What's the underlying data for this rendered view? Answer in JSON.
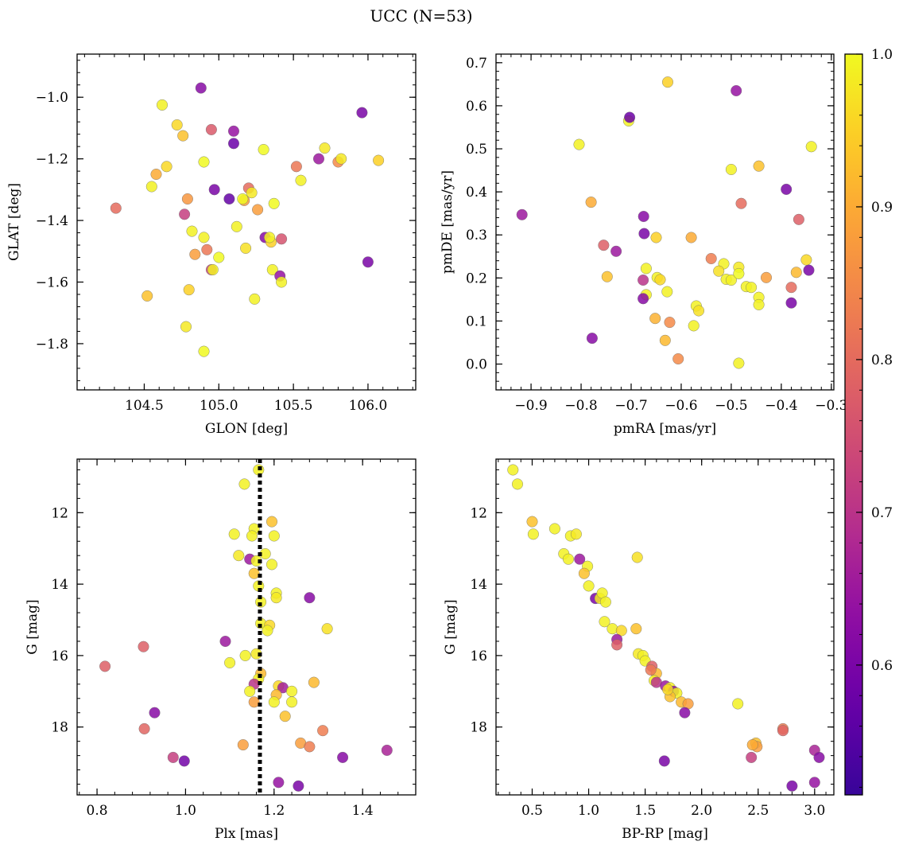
{
  "figure": {
    "title": "UCC (N=53)"
  },
  "colorbar": {
    "colormap": "plasma",
    "vmin": 0.515,
    "vmax": 1.0,
    "ticks": [
      0.6,
      0.7,
      0.8,
      0.9,
      1.0
    ],
    "tick_labels": [
      "0.6",
      "0.7",
      "0.8",
      "0.9",
      "1.0"
    ]
  },
  "chart_data": [
    {
      "type": "scatter",
      "xlabel": "GLON [deg]",
      "ylabel": "GLAT [deg]",
      "xlim": [
        104.05,
        106.32
      ],
      "ylim": [
        -1.95,
        -0.86
      ],
      "y_inverted": false,
      "xticks": [
        104.5,
        105.0,
        105.5,
        106.0
      ],
      "xtick_labels": [
        "104.5",
        "105.0",
        "105.5",
        "106.0"
      ],
      "yticks": [
        -1.8,
        -1.6,
        -1.4,
        -1.2,
        -1.0
      ],
      "ytick_labels": [
        "−1.8",
        "−1.6",
        "−1.4",
        "−1.2",
        "−1.0"
      ],
      "points": [
        [
          104.88,
          -0.97,
          0.62
        ],
        [
          104.62,
          -1.025,
          0.99
        ],
        [
          104.72,
          -1.09,
          0.96
        ],
        [
          104.76,
          -1.125,
          0.93
        ],
        [
          104.95,
          -1.105,
          0.77
        ],
        [
          105.1,
          -1.11,
          0.64
        ],
        [
          105.1,
          -1.15,
          0.58
        ],
        [
          105.96,
          -1.05,
          0.6
        ],
        [
          104.31,
          -1.36,
          0.8
        ],
        [
          104.55,
          -1.29,
          0.99
        ],
        [
          104.58,
          -1.25,
          0.9
        ],
        [
          104.65,
          -1.225,
          0.96
        ],
        [
          104.9,
          -1.21,
          1.0
        ],
        [
          105.3,
          -1.17,
          1.0
        ],
        [
          105.71,
          -1.165,
          0.98
        ],
        [
          105.67,
          -1.2,
          0.65
        ],
        [
          105.8,
          -1.21,
          0.85
        ],
        [
          105.82,
          -1.2,
          0.98
        ],
        [
          106.07,
          -1.205,
          0.95
        ],
        [
          105.52,
          -1.225,
          0.82
        ],
        [
          105.55,
          -1.27,
          0.99
        ],
        [
          104.97,
          -1.3,
          0.6
        ],
        [
          105.07,
          -1.33,
          0.57
        ],
        [
          105.17,
          -1.335,
          0.88
        ],
        [
          105.2,
          -1.295,
          0.8
        ],
        [
          105.22,
          -1.31,
          0.98
        ],
        [
          105.26,
          -1.365,
          0.88
        ],
        [
          105.37,
          -1.345,
          1.0
        ],
        [
          105.16,
          -1.33,
          1.0
        ],
        [
          104.77,
          -1.38,
          0.72
        ],
        [
          104.79,
          -1.33,
          0.87
        ],
        [
          104.82,
          -1.435,
          0.99
        ],
        [
          104.84,
          -1.51,
          0.88
        ],
        [
          104.9,
          -1.455,
          0.99
        ],
        [
          104.92,
          -1.495,
          0.82
        ],
        [
          104.95,
          -1.56,
          0.73
        ],
        [
          104.96,
          -1.56,
          0.99
        ],
        [
          105.0,
          -1.52,
          1.0
        ],
        [
          105.12,
          -1.42,
          0.99
        ],
        [
          105.18,
          -1.49,
          0.97
        ],
        [
          105.31,
          -1.455,
          0.62
        ],
        [
          105.35,
          -1.47,
          0.95
        ],
        [
          105.34,
          -1.455,
          0.99
        ],
        [
          105.42,
          -1.46,
          0.76
        ],
        [
          105.36,
          -1.56,
          0.99
        ],
        [
          105.41,
          -1.58,
          0.64
        ],
        [
          105.42,
          -1.6,
          0.99
        ],
        [
          105.24,
          -1.655,
          0.99
        ],
        [
          104.52,
          -1.645,
          0.93
        ],
        [
          104.8,
          -1.625,
          0.95
        ],
        [
          104.78,
          -1.745,
          0.98
        ],
        [
          104.9,
          -1.825,
          1.0
        ],
        [
          106.0,
          -1.535,
          0.6
        ]
      ]
    },
    {
      "type": "scatter",
      "xlabel": "pmRA [mas/yr]",
      "ylabel": "pmDE [mas/yr]",
      "xlim": [
        -0.97,
        -0.295
      ],
      "ylim": [
        -0.06,
        0.72
      ],
      "y_inverted": false,
      "xticks": [
        -0.9,
        -0.8,
        -0.7,
        -0.6,
        -0.5,
        -0.4,
        -0.3
      ],
      "xtick_labels": [
        "−0.9",
        "−0.8",
        "−0.7",
        "−0.6",
        "−0.5",
        "−0.4",
        "−0.3"
      ],
      "yticks": [
        0.0,
        0.1,
        0.2,
        0.3,
        0.4,
        0.5,
        0.6,
        0.7
      ],
      "ytick_labels": [
        "0.0",
        "0.1",
        "0.2",
        "0.3",
        "0.4",
        "0.5",
        "0.6",
        "0.7"
      ],
      "points": [
        [
          -0.918,
          0.347,
          0.65
        ],
        [
          -0.804,
          0.51,
          0.99
        ],
        [
          -0.705,
          0.565,
          0.99
        ],
        [
          -0.703,
          0.573,
          0.58
        ],
        [
          -0.627,
          0.655,
          0.95
        ],
        [
          -0.49,
          0.635,
          0.64
        ],
        [
          -0.34,
          0.505,
          0.99
        ],
        [
          -0.445,
          0.46,
          0.93
        ],
        [
          -0.5,
          0.452,
          0.99
        ],
        [
          -0.39,
          0.406,
          0.6
        ],
        [
          -0.48,
          0.373,
          0.8
        ],
        [
          -0.78,
          0.376,
          0.9
        ],
        [
          -0.675,
          0.343,
          0.62
        ],
        [
          -0.674,
          0.303,
          0.6
        ],
        [
          -0.365,
          0.336,
          0.78
        ],
        [
          -0.755,
          0.276,
          0.78
        ],
        [
          -0.73,
          0.262,
          0.65
        ],
        [
          -0.65,
          0.294,
          0.95
        ],
        [
          -0.58,
          0.294,
          0.9
        ],
        [
          -0.676,
          0.195,
          0.7
        ],
        [
          -0.67,
          0.222,
          0.99
        ],
        [
          -0.648,
          0.201,
          0.99
        ],
        [
          -0.642,
          0.196,
          0.96
        ],
        [
          -0.628,
          0.168,
          0.99
        ],
        [
          -0.67,
          0.161,
          0.99
        ],
        [
          -0.676,
          0.152,
          0.62
        ],
        [
          -0.748,
          0.203,
          0.93
        ],
        [
          -0.54,
          0.245,
          0.83
        ],
        [
          -0.515,
          0.233,
          0.99
        ],
        [
          -0.525,
          0.216,
          0.97
        ],
        [
          -0.51,
          0.197,
          0.99
        ],
        [
          -0.5,
          0.195,
          0.99
        ],
        [
          -0.485,
          0.225,
          0.98
        ],
        [
          -0.485,
          0.21,
          1.0
        ],
        [
          -0.47,
          0.18,
          0.99
        ],
        [
          -0.46,
          0.178,
          0.99
        ],
        [
          -0.43,
          0.201,
          0.88
        ],
        [
          -0.445,
          0.155,
          0.99
        ],
        [
          -0.445,
          0.138,
          0.99
        ],
        [
          -0.38,
          0.178,
          0.8
        ],
        [
          -0.37,
          0.213,
          0.92
        ],
        [
          -0.35,
          0.242,
          0.96
        ],
        [
          -0.345,
          0.218,
          0.6
        ],
        [
          -0.38,
          0.142,
          0.6
        ],
        [
          -0.57,
          0.135,
          0.99
        ],
        [
          -0.565,
          0.124,
          0.97
        ],
        [
          -0.575,
          0.089,
          0.99
        ],
        [
          -0.652,
          0.106,
          0.91
        ],
        [
          -0.623,
          0.097,
          0.85
        ],
        [
          -0.632,
          0.055,
          0.92
        ],
        [
          -0.606,
          0.012,
          0.85
        ],
        [
          -0.485,
          0.002,
          0.99
        ],
        [
          -0.778,
          0.06,
          0.62
        ]
      ]
    },
    {
      "type": "scatter",
      "xlabel": "Plx [mas]",
      "ylabel": "G [mag]",
      "xlim": [
        0.755,
        1.52
      ],
      "ylim": [
        19.9,
        10.5
      ],
      "y_inverted": true,
      "vline": {
        "x": 1.168,
        "style": "dotted",
        "color": "#000000"
      },
      "xticks": [
        0.8,
        1.0,
        1.2,
        1.4
      ],
      "xtick_labels": [
        "0.8",
        "1.0",
        "1.2",
        "1.4"
      ],
      "yticks": [
        12,
        14,
        16,
        18
      ],
      "ytick_labels": [
        "12",
        "14",
        "16",
        "18"
      ],
      "points": [
        [
          1.165,
          10.8,
          0.99
        ],
        [
          1.133,
          11.2,
          0.99
        ],
        [
          1.195,
          12.25,
          0.93
        ],
        [
          1.155,
          12.45,
          0.99
        ],
        [
          1.11,
          12.6,
          0.99
        ],
        [
          1.15,
          12.65,
          0.99
        ],
        [
          1.2,
          12.65,
          0.99
        ],
        [
          1.18,
          13.15,
          0.99
        ],
        [
          1.12,
          13.2,
          0.98
        ],
        [
          1.145,
          13.3,
          0.65
        ],
        [
          1.16,
          13.35,
          0.99
        ],
        [
          1.195,
          13.45,
          0.99
        ],
        [
          1.155,
          13.7,
          0.93
        ],
        [
          1.165,
          14.05,
          0.99
        ],
        [
          1.205,
          14.25,
          0.99
        ],
        [
          1.205,
          14.38,
          0.98
        ],
        [
          1.28,
          14.38,
          0.62
        ],
        [
          1.17,
          14.5,
          0.99
        ],
        [
          1.17,
          15.1,
          0.99
        ],
        [
          1.19,
          15.15,
          0.96
        ],
        [
          1.185,
          15.3,
          0.99
        ],
        [
          1.32,
          15.25,
          0.97
        ],
        [
          1.09,
          15.6,
          0.65
        ],
        [
          0.905,
          15.75,
          0.78
        ],
        [
          1.1,
          16.2,
          0.99
        ],
        [
          1.135,
          16.0,
          0.99
        ],
        [
          1.16,
          15.95,
          0.98
        ],
        [
          0.818,
          16.3,
          0.78
        ],
        [
          1.17,
          16.5,
          0.92
        ],
        [
          1.21,
          16.85,
          0.96
        ],
        [
          1.22,
          16.9,
          0.66
        ],
        [
          1.24,
          17.0,
          0.99
        ],
        [
          1.165,
          16.65,
          0.99
        ],
        [
          1.155,
          16.8,
          0.7
        ],
        [
          1.145,
          17.0,
          0.99
        ],
        [
          1.155,
          17.3,
          0.88
        ],
        [
          1.205,
          17.1,
          0.92
        ],
        [
          1.24,
          17.3,
          0.99
        ],
        [
          1.2,
          17.3,
          0.99
        ],
        [
          1.225,
          17.7,
          0.93
        ],
        [
          1.29,
          16.75,
          0.92
        ],
        [
          0.93,
          17.6,
          0.62
        ],
        [
          0.907,
          18.05,
          0.79
        ],
        [
          1.31,
          18.1,
          0.83
        ],
        [
          1.13,
          18.5,
          0.88
        ],
        [
          1.26,
          18.45,
          0.88
        ],
        [
          1.28,
          18.55,
          0.83
        ],
        [
          0.972,
          18.85,
          0.72
        ],
        [
          0.997,
          18.95,
          0.59
        ],
        [
          1.355,
          18.85,
          0.62
        ],
        [
          1.455,
          18.65,
          0.67
        ],
        [
          1.21,
          19.55,
          0.64
        ],
        [
          1.255,
          19.65,
          0.6
        ]
      ]
    },
    {
      "type": "scatter",
      "xlabel": "BP-RP [mag]",
      "ylabel": "G [mag]",
      "xlim": [
        0.18,
        3.17
      ],
      "ylim": [
        19.9,
        10.5
      ],
      "y_inverted": true,
      "xticks": [
        0.5,
        1.0,
        1.5,
        2.0,
        2.5,
        3.0
      ],
      "xtick_labels": [
        "0.5",
        "1.0",
        "1.5",
        "2.0",
        "2.5",
        "3.0"
      ],
      "yticks": [
        12,
        14,
        16,
        18
      ],
      "ytick_labels": [
        "12",
        "14",
        "16",
        "18"
      ],
      "points": [
        [
          0.33,
          10.8,
          0.99
        ],
        [
          0.37,
          11.2,
          0.99
        ],
        [
          0.5,
          12.25,
          0.93
        ],
        [
          0.51,
          12.6,
          0.99
        ],
        [
          0.7,
          12.45,
          0.99
        ],
        [
          0.78,
          13.15,
          0.99
        ],
        [
          0.82,
          13.3,
          0.99
        ],
        [
          0.84,
          12.65,
          0.99
        ],
        [
          0.89,
          12.6,
          0.98
        ],
        [
          0.92,
          13.3,
          0.65
        ],
        [
          0.99,
          13.5,
          0.99
        ],
        [
          0.96,
          13.7,
          0.93
        ],
        [
          1.0,
          14.05,
          0.99
        ],
        [
          1.06,
          14.4,
          0.6
        ],
        [
          1.1,
          14.4,
          0.98
        ],
        [
          1.12,
          14.25,
          0.99
        ],
        [
          1.15,
          14.5,
          0.99
        ],
        [
          1.43,
          13.25,
          0.97
        ],
        [
          1.14,
          15.05,
          0.99
        ],
        [
          1.21,
          15.25,
          0.99
        ],
        [
          1.29,
          15.3,
          0.96
        ],
        [
          1.42,
          15.25,
          0.93
        ],
        [
          1.25,
          15.55,
          0.65
        ],
        [
          1.25,
          15.7,
          0.78
        ],
        [
          1.44,
          15.95,
          0.98
        ],
        [
          1.48,
          16.0,
          0.99
        ],
        [
          1.5,
          16.15,
          0.99
        ],
        [
          1.56,
          16.3,
          0.78
        ],
        [
          1.6,
          16.5,
          0.92
        ],
        [
          1.58,
          16.7,
          0.99
        ],
        [
          1.6,
          16.75,
          0.7
        ],
        [
          1.68,
          16.85,
          0.65
        ],
        [
          1.72,
          16.9,
          0.99
        ],
        [
          1.75,
          17.0,
          0.62
        ],
        [
          1.78,
          17.05,
          0.99
        ],
        [
          1.72,
          17.15,
          0.93
        ],
        [
          1.82,
          17.3,
          0.92
        ],
        [
          1.88,
          17.35,
          0.88
        ],
        [
          1.85,
          17.6,
          0.62
        ],
        [
          2.32,
          17.35,
          0.99
        ],
        [
          1.67,
          18.95,
          0.6
        ],
        [
          2.44,
          18.85,
          0.72
        ],
        [
          2.48,
          18.45,
          0.93
        ],
        [
          2.49,
          18.55,
          0.88
        ],
        [
          2.72,
          18.05,
          0.83
        ],
        [
          2.72,
          18.1,
          0.79
        ],
        [
          2.8,
          19.65,
          0.6
        ],
        [
          3.0,
          18.65,
          0.67
        ],
        [
          3.04,
          18.85,
          0.62
        ],
        [
          3.0,
          19.55,
          0.64
        ],
        [
          2.45,
          18.5,
          0.9
        ],
        [
          1.55,
          16.4,
          0.82
        ],
        [
          1.7,
          16.95,
          0.96
        ]
      ]
    }
  ]
}
